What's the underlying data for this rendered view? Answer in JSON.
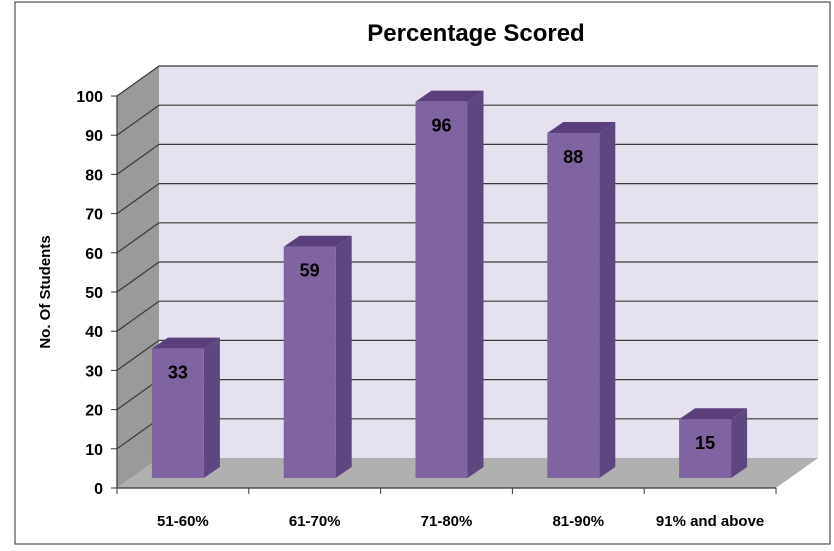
{
  "chart_data": {
    "type": "bar",
    "title": "Percentage Scored",
    "xlabel": "",
    "ylabel": "No. Of Students",
    "categories": [
      "51-60%",
      "61-70%",
      "71-80%",
      "81-90%",
      "91% and above"
    ],
    "values": [
      33,
      59,
      96,
      88,
      15
    ],
    "ylim": [
      0,
      100
    ],
    "yticks": [
      0,
      10,
      20,
      30,
      40,
      50,
      60,
      70,
      80,
      90,
      100
    ],
    "grid": true,
    "legend": "none",
    "style": "3d-column"
  },
  "colors": {
    "bar_front": "#8064a2",
    "bar_side": "#5e4680",
    "bar_top": "#5a3f7c",
    "back_wall": "#e6e1ee",
    "side_wall": "#9a9a9a",
    "floor": "#b0b0b0",
    "gridline": "#3a3a3a"
  }
}
